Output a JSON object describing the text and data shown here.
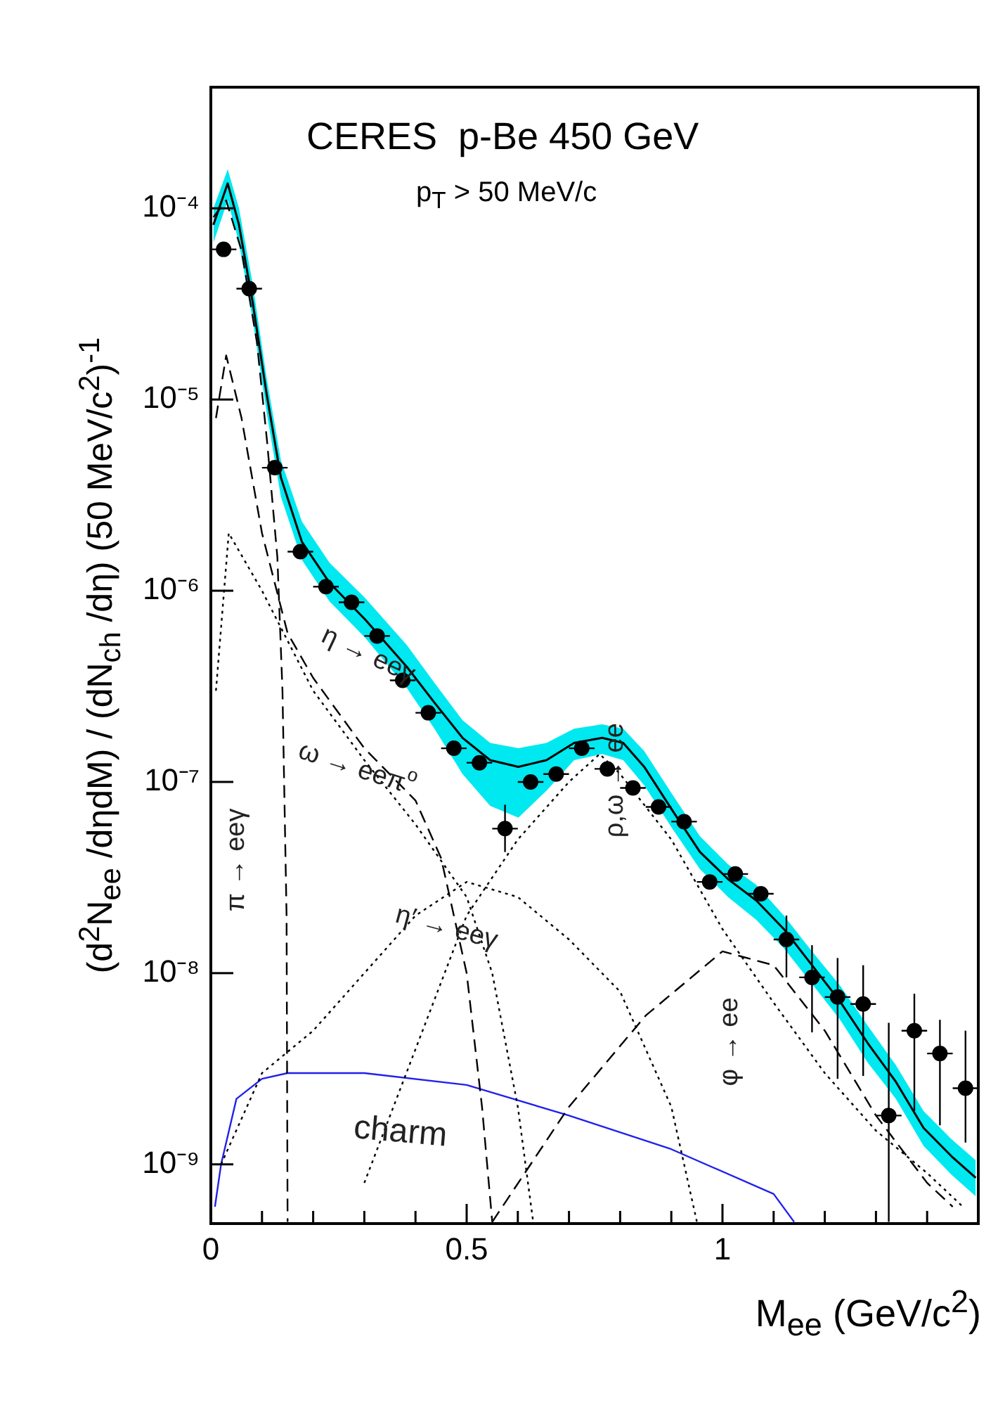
{
  "chart_data": {
    "type": "line",
    "title": "CERES  p-Be 450 GeV",
    "subtitle": "p$_{T}$ > 50 MeV/c",
    "xlabel": "M$_{ee}$ (GeV/c$^{2}$)",
    "ylabel": "(d$^{2}$N$_{ee}$ /dηdM) / (dN$_{ch}$ /dη) (50 MeV/c$^{2}$)$^{-1}$",
    "log": "y",
    "grid": false,
    "legend": false,
    "xlim": [
      0,
      1.5
    ],
    "xticks": [
      0,
      {
        "value": 0.1,
        "label": null
      },
      {
        "value": 0.2,
        "label": null
      },
      {
        "value": 0.3,
        "label": null
      },
      {
        "value": 0.4,
        "label": null
      },
      0.5,
      {
        "value": 0.6,
        "label": null
      },
      {
        "value": 0.7,
        "label": null
      },
      {
        "value": 0.8,
        "label": null
      },
      {
        "value": 0.9,
        "label": null
      },
      1,
      {
        "value": 1.1,
        "label": null
      },
      {
        "value": 1.2,
        "label": null
      },
      {
        "value": 1.3,
        "label": null
      },
      {
        "value": 1.4,
        "label": null
      }
    ],
    "ylim": [
      4.9e-10,
      0.00043
    ],
    "yticks": [
      {
        "value": 1e-09,
        "label": "10⁻⁹"
      },
      {
        "value": 1e-08,
        "label": "10⁻⁸"
      },
      {
        "value": 1e-07,
        "label": "10⁻⁷"
      },
      {
        "value": 1e-06,
        "label": "10⁻⁶"
      },
      {
        "value": 1e-05,
        "label": "10⁻⁵"
      },
      {
        "value": 0.0001,
        "label": "10⁻⁴"
      }
    ],
    "series": [
      {
        "type": "line",
        "color": "#000000",
        "line_style": "solid",
        "x": [
          0.005,
          0.033,
          0.055,
          0.082,
          0.109,
          0.137,
          0.178,
          0.232,
          0.301,
          0.383,
          0.437,
          0.492,
          0.546,
          0.601,
          0.656,
          0.71,
          0.765,
          0.806,
          0.847,
          0.902,
          0.956,
          1.011,
          1.066,
          1.12,
          1.175,
          1.23,
          1.284,
          1.339,
          1.393,
          1.448,
          1.495
        ],
        "values": [
          8.2e-05,
          0.000135,
          8.2e-05,
          3.2e-05,
          1.07e-05,
          3.9e-06,
          1.8e-06,
          1.1e-06,
          7.1e-07,
          4e-07,
          2.6e-07,
          1.7e-07,
          1.3e-07,
          1.2e-07,
          1.3e-07,
          1.6e-07,
          1.7e-07,
          1.6e-07,
          1.2e-07,
          7.1e-08,
          4.3e-08,
          3.1e-08,
          2.4e-08,
          1.7e-08,
          1.1e-08,
          7.1e-09,
          4.3e-09,
          2.7e-09,
          1.55e-09,
          1.1e-09,
          8.5e-10
        ],
        "upper": [
          0.0001,
          0.00016,
          0.0001,
          4e-05,
          1.3e-05,
          4.8e-06,
          2.3e-06,
          1.4e-06,
          9.2e-07,
          5.2e-07,
          3.3e-07,
          2.1e-07,
          1.6e-07,
          1.5e-07,
          1.6e-07,
          1.9e-07,
          2e-07,
          1.9e-07,
          1.45e-07,
          8.6e-08,
          5.2e-08,
          3.7e-08,
          2.9e-08,
          2e-08,
          1.3e-08,
          8.6e-09,
          5.3e-09,
          3.3e-09,
          1.9e-09,
          1.35e-09,
          1.05e-09
        ],
        "lower": [
          6.6e-05,
          0.00011,
          6.6e-05,
          2.6e-05,
          8.6e-06,
          3.1e-06,
          1.45e-06,
          8.8e-07,
          5.7e-07,
          3.1e-07,
          1.9e-07,
          1.1e-07,
          7.5e-08,
          6.5e-08,
          9e-08,
          1.3e-07,
          1.4e-07,
          1.3e-07,
          9.6e-08,
          5.7e-08,
          3.5e-08,
          2.5e-08,
          1.9e-08,
          1.35e-08,
          8.8e-09,
          5.7e-09,
          3.4e-09,
          2.2e-09,
          1.25e-09,
          8.8e-10,
          6.8e-10
        ]
      },
      {
        "type": "line",
        "color": "#000000",
        "line_style": "dashed",
        "x": [
          0.005,
          0.03,
          0.06,
          0.09,
          0.11,
          0.13,
          0.14,
          0.148,
          0.15
        ],
        "values": [
          9e-05,
          0.00011,
          6e-05,
          2e-05,
          6e-06,
          1.5e-06,
          3e-07,
          2e-08,
          5e-10
        ]
      },
      {
        "type": "line",
        "color": "#000000",
        "line_style": "dashed",
        "x": [
          0.01,
          0.03,
          0.06,
          0.1,
          0.15,
          0.2,
          0.3,
          0.4,
          0.45,
          0.5,
          0.53,
          0.55
        ],
        "values": [
          8e-06,
          1.7e-05,
          8e-06,
          2e-06,
          6e-07,
          3.5e-07,
          1.5e-07,
          8e-08,
          4e-08,
          1e-08,
          2e-09,
          5e-10
        ]
      },
      {
        "type": "line",
        "color": "#000000",
        "line_style": "dotted",
        "x": [
          0.01,
          0.035,
          0.1,
          0.2,
          0.3,
          0.4,
          0.5,
          0.55,
          0.6,
          0.63
        ],
        "values": [
          3e-07,
          2e-06,
          1e-06,
          3e-07,
          1.3e-07,
          6e-08,
          2.5e-08,
          1e-08,
          2e-09,
          5e-10
        ]
      },
      {
        "type": "line",
        "color": "#000000",
        "line_style": "dotted",
        "x": [
          0.02,
          0.1,
          0.2,
          0.3,
          0.4,
          0.5,
          0.6,
          0.7,
          0.8,
          0.9,
          0.95
        ],
        "values": [
          1e-09,
          3e-09,
          5e-09,
          1e-08,
          2e-08,
          3e-08,
          2.5e-08,
          1.5e-08,
          8e-09,
          2e-09,
          5e-10
        ]
      },
      {
        "type": "line",
        "color": "#000000",
        "line_style": "dotted",
        "x": [
          0.3,
          0.4,
          0.5,
          0.6,
          0.7,
          0.76,
          0.8,
          0.9,
          1.0,
          1.1,
          1.2,
          1.3,
          1.4,
          1.47
        ],
        "values": [
          8e-10,
          4e-09,
          2e-08,
          5e-08,
          1e-07,
          1.4e-07,
          1.1e-07,
          5e-08,
          1.7e-08,
          7e-09,
          3e-09,
          1.5e-09,
          9e-10,
          6e-10
        ]
      },
      {
        "type": "line",
        "color": "#000000",
        "line_style": "dashed",
        "x": [
          0.55,
          0.7,
          0.85,
          1.0,
          1.1,
          1.2,
          1.3,
          1.4,
          1.45
        ],
        "values": [
          5e-10,
          2e-09,
          6e-09,
          1.3e-08,
          1.1e-08,
          5e-09,
          1.8e-09,
          8e-10,
          6e-10
        ]
      },
      {
        "type": "line",
        "color": "#2020ee",
        "line_style": "solid",
        "x": [
          0.008,
          0.02,
          0.05,
          0.1,
          0.15,
          0.3,
          0.5,
          0.7,
          0.9,
          1.1,
          1.14
        ],
        "values": [
          6e-10,
          1e-09,
          2.2e-09,
          2.8e-09,
          3e-09,
          3e-09,
          2.6e-09,
          1.8e-09,
          1.2e-09,
          7e-10,
          5e-10
        ]
      },
      {
        "type": "scatter",
        "color": "#000000",
        "marker": "circle",
        "x": [
          0.025,
          0.075,
          0.125,
          0.175,
          0.225,
          0.275,
          0.325,
          0.375,
          0.425,
          0.475,
          0.525,
          0.575,
          0.625,
          0.675,
          0.725,
          0.775,
          0.825,
          0.875,
          0.925,
          0.975,
          1.025,
          1.075,
          1.125,
          1.175,
          1.225,
          1.275,
          1.325,
          1.375,
          1.425,
          1.475
        ],
        "values": [
          6.1e-05,
          3.8e-05,
          4.4e-06,
          1.6e-06,
          1.05e-06,
          8.7e-07,
          5.8e-07,
          3.4e-07,
          2.3e-07,
          1.5e-07,
          1.26e-07,
          5.7e-08,
          1e-07,
          1.1e-07,
          1.5e-07,
          1.17e-07,
          9.3e-08,
          7.4e-08,
          6.2e-08,
          3e-08,
          3.3e-08,
          2.6e-08,
          1.5e-08,
          9.5e-09,
          7.5e-09,
          6.9e-09,
          1.8e-09,
          5e-09,
          3.8e-09,
          2.5e-09
        ],
        "errors": [
          null,
          null,
          null,
          null,
          null,
          null,
          null,
          null,
          null,
          null,
          null,
          [
            4.3e-08,
            7.6e-08
          ],
          null,
          null,
          null,
          null,
          null,
          null,
          null,
          null,
          null,
          null,
          [
            9.5e-09,
            2e-08
          ],
          [
            4.9e-09,
            1.4e-08
          ],
          [
            2.8e-09,
            1.2e-08
          ],
          [
            2.9e-09,
            1.1e-08
          ],
          [
            5e-10,
            5.5e-09
          ],
          [
            1.9e-09,
            7.8e-09
          ],
          [
            1.6e-09,
            5.7e-09
          ],
          [
            1.3e-09,
            5e-09
          ]
        ],
        "xerrors": [
          0.025,
          0.025,
          0.025,
          0.025,
          0.025,
          0.025,
          0.025,
          0.025,
          0.025,
          0.025,
          0.025,
          0.025,
          0.025,
          0.025,
          0.025,
          0.025,
          0.025,
          0.025,
          0.025,
          0.025,
          0.025,
          0.025,
          0.025,
          0.025,
          0.025,
          0.025,
          0.025,
          0.025,
          0.025,
          0.025
        ]
      }
    ],
    "annotations": [
      "π → eeγ",
      "η → eeγ",
      "ω → eeπ$^{o}$",
      "η′ → eeγ",
      "ρ,ω → ee",
      "φ → ee",
      "charm"
    ]
  }
}
